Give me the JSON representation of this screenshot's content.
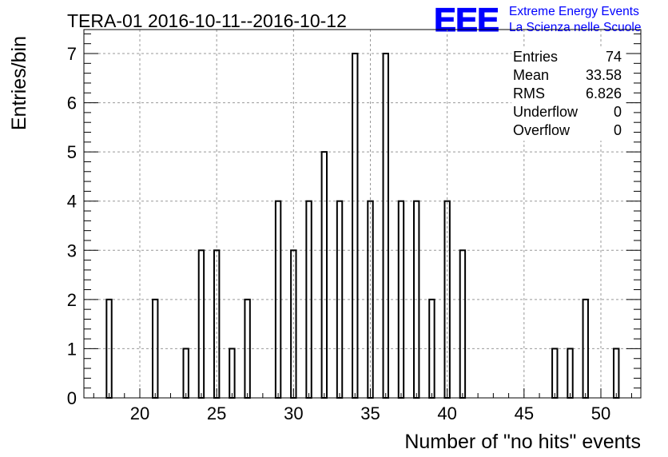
{
  "chart_data": {
    "type": "bar",
    "title": "TERA-01 2016-10-11--2016-10-12",
    "xlabel": "Number of \"no hits\" events",
    "ylabel": "Entries/bin",
    "xlim": [
      16.5,
      53
    ],
    "ylim": [
      0,
      7.5
    ],
    "bin_width": 0.333,
    "x_ticks": [
      20,
      25,
      30,
      35,
      40,
      45,
      50
    ],
    "y_ticks": [
      0,
      1,
      2,
      3,
      4,
      5,
      6,
      7
    ],
    "grid": true,
    "bins": [
      {
        "x": 18.0,
        "value": 2
      },
      {
        "x": 21.0,
        "value": 2
      },
      {
        "x": 23.0,
        "value": 1
      },
      {
        "x": 24.0,
        "value": 3
      },
      {
        "x": 25.0,
        "value": 3
      },
      {
        "x": 26.0,
        "value": 1
      },
      {
        "x": 27.0,
        "value": 2
      },
      {
        "x": 29.0,
        "value": 4
      },
      {
        "x": 30.0,
        "value": 3
      },
      {
        "x": 31.0,
        "value": 4
      },
      {
        "x": 32.0,
        "value": 5
      },
      {
        "x": 33.0,
        "value": 4
      },
      {
        "x": 34.0,
        "value": 7
      },
      {
        "x": 35.0,
        "value": 4
      },
      {
        "x": 36.0,
        "value": 7
      },
      {
        "x": 37.0,
        "value": 4
      },
      {
        "x": 38.0,
        "value": 4
      },
      {
        "x": 39.0,
        "value": 2
      },
      {
        "x": 40.0,
        "value": 4
      },
      {
        "x": 41.0,
        "value": 3
      },
      {
        "x": 47.0,
        "value": 1
      },
      {
        "x": 48.0,
        "value": 1
      },
      {
        "x": 49.0,
        "value": 2
      },
      {
        "x": 51.0,
        "value": 1
      }
    ],
    "stats": [
      {
        "label": "Entries",
        "value": "74"
      },
      {
        "label": "Mean",
        "value": "33.58"
      },
      {
        "label": "RMS",
        "value": "6.826"
      },
      {
        "label": "Underflow",
        "value": "0"
      },
      {
        "label": "Overflow",
        "value": "0"
      }
    ]
  },
  "logo": {
    "mark": "EEE",
    "line1": "Extreme Energy Events",
    "line2": "La Scienza nelle Scuole",
    "color": "#0000ff"
  },
  "colors": {
    "bar_stroke": "#000000",
    "grid": "#999999"
  }
}
